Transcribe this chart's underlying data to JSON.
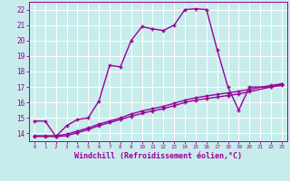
{
  "xlabel": "Windchill (Refroidissement éolien,°C)",
  "background_color": "#c8ecec",
  "line_color": "#990099",
  "grid_color": "#ffffff",
  "xlim": [
    -0.5,
    23.5
  ],
  "ylim": [
    13.5,
    22.5
  ],
  "yticks": [
    14,
    15,
    16,
    17,
    18,
    19,
    20,
    21,
    22
  ],
  "xticks": [
    0,
    1,
    2,
    3,
    4,
    5,
    6,
    7,
    8,
    9,
    10,
    11,
    12,
    13,
    14,
    15,
    16,
    17,
    18,
    19,
    20,
    21,
    22,
    23
  ],
  "series1_x": [
    0,
    1,
    2,
    3,
    4,
    5,
    6,
    7,
    8,
    9,
    10,
    11,
    12,
    13,
    14,
    15,
    16,
    17,
    18,
    19,
    20,
    22,
    23
  ],
  "series1_y": [
    14.8,
    14.8,
    13.8,
    14.5,
    14.9,
    15.0,
    16.1,
    18.4,
    18.3,
    20.0,
    20.9,
    20.75,
    20.65,
    21.0,
    22.0,
    22.05,
    22.0,
    19.4,
    17.0,
    15.5,
    17.0,
    17.0,
    17.2
  ],
  "series2_x": [
    0,
    1,
    2,
    3,
    4,
    5,
    6,
    7,
    8,
    9,
    10,
    11,
    12,
    13,
    14,
    15,
    16,
    17,
    18,
    19,
    20,
    22,
    23
  ],
  "series2_y": [
    13.8,
    13.8,
    13.8,
    13.85,
    14.05,
    14.25,
    14.5,
    14.7,
    14.9,
    15.1,
    15.3,
    15.45,
    15.6,
    15.8,
    16.0,
    16.15,
    16.25,
    16.35,
    16.45,
    16.55,
    16.7,
    17.0,
    17.1
  ],
  "series3_x": [
    0,
    1,
    2,
    3,
    4,
    5,
    6,
    7,
    8,
    9,
    10,
    11,
    12,
    13,
    14,
    15,
    16,
    17,
    18,
    19,
    20,
    22,
    23
  ],
  "series3_y": [
    13.85,
    13.85,
    13.85,
    13.95,
    14.15,
    14.35,
    14.6,
    14.8,
    15.0,
    15.25,
    15.45,
    15.6,
    15.75,
    15.95,
    16.15,
    16.3,
    16.42,
    16.52,
    16.62,
    16.72,
    16.85,
    17.1,
    17.2
  ],
  "marker_size": 3.5,
  "line_width": 1.0,
  "xlabel_fontsize": 6.0,
  "tick_fontsize": 5.5
}
